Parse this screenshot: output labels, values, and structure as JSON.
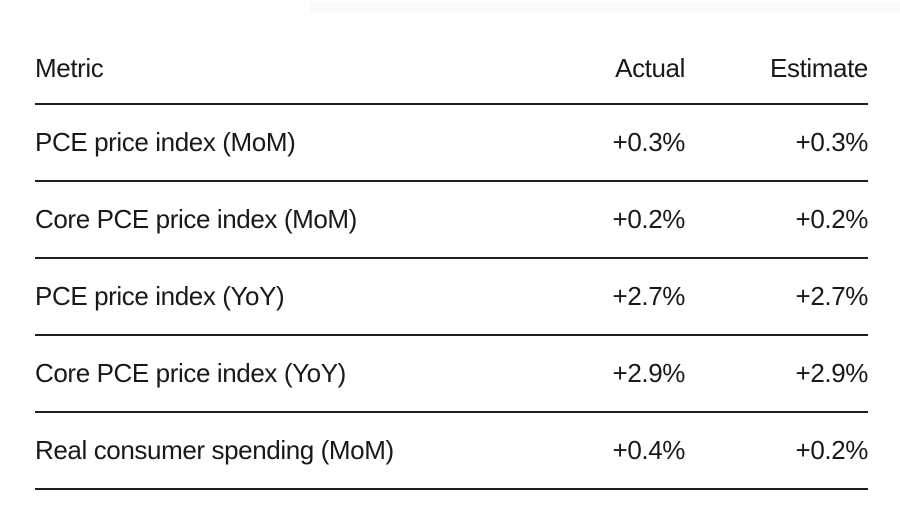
{
  "page": {
    "background_color": "#ffffff",
    "text_color": "#191919",
    "rule_color": "#1f1f1f"
  },
  "table": {
    "headers": {
      "metric": "Metric",
      "actual": "Actual",
      "estimate": "Estimate"
    },
    "rows": [
      {
        "metric": "PCE price index (MoM)",
        "actual": "+0.3%",
        "estimate": "+0.3%"
      },
      {
        "metric": "Core PCE price index (MoM)",
        "actual": "+0.2%",
        "estimate": "+0.2%"
      },
      {
        "metric": "PCE price index (YoY)",
        "actual": "+2.7%",
        "estimate": "+2.7%"
      },
      {
        "metric": "Core PCE price index (YoY)",
        "actual": "+2.9%",
        "estimate": "+2.9%"
      },
      {
        "metric": "Real consumer spending (MoM)",
        "actual": "+0.4%",
        "estimate": "+0.2%"
      }
    ]
  },
  "chart_data": {
    "type": "table",
    "title": "",
    "columns": [
      "Metric",
      "Actual",
      "Estimate"
    ],
    "rows": [
      [
        "PCE price index (MoM)",
        "+0.3%",
        "+0.3%"
      ],
      [
        "Core PCE price index (MoM)",
        "+0.2%",
        "+0.2%"
      ],
      [
        "PCE price index (YoY)",
        "+2.7%",
        "+2.7%"
      ],
      [
        "Core PCE price index (YoY)",
        "+2.9%",
        "+2.9%"
      ],
      [
        "Real consumer spending (MoM)",
        "+0.4%",
        "+0.2%"
      ]
    ],
    "layout_hints": {
      "numeric_columns_alignment": "right",
      "row_separators": true,
      "grid_vertical": false,
      "background": "#ffffff"
    }
  }
}
